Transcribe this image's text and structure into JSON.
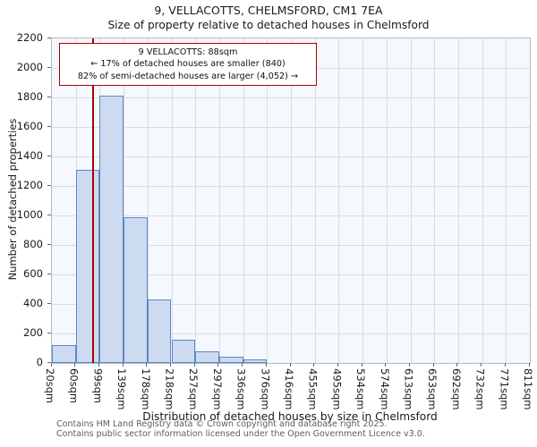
{
  "title": "9, VELLACOTTS, CHELMSFORD, CM1 7EA",
  "subtitle": "Size of property relative to detached houses in Chelmsford",
  "chart_data": {
    "type": "bar",
    "bin_edges_sqm": [
      20,
      60,
      99,
      139,
      178,
      218,
      257,
      297,
      336,
      376,
      416,
      455,
      495,
      534,
      574,
      613,
      653,
      692,
      732,
      771,
      811
    ],
    "values": [
      120,
      1310,
      1810,
      990,
      430,
      155,
      80,
      40,
      25,
      0,
      0,
      0,
      0,
      0,
      0,
      0,
      0,
      0,
      0,
      0
    ],
    "x_tick_suffix": "sqm",
    "xlabel": "Distribution of detached houses by size in Chelmsford",
    "ylabel": "Number of detached properties",
    "ylim": [
      0,
      2200
    ],
    "ytick_step": 200,
    "marker_value_sqm": 88,
    "grid": true,
    "legend": "none"
  },
  "annotation": {
    "line1": "9 VELLACOTTS: 88sqm",
    "line2": "← 17% of detached houses are smaller (840)",
    "line3": "82% of semi-detached houses are larger (4,052) →"
  },
  "footer": {
    "line1": "Contains HM Land Registry data © Crown copyright and database right 2025.",
    "line2": "Contains public sector information licensed under the Open Government Licence v3.0."
  },
  "colors": {
    "bar_fill": "#ccdbf0",
    "bar_border": "#5b87c5",
    "marker_line": "#aa0000",
    "annotation_border": "#aa0000",
    "grid": "#d6dcea",
    "plot_bg": "#f5f8fc",
    "footer_text": "#5d5d5d"
  }
}
